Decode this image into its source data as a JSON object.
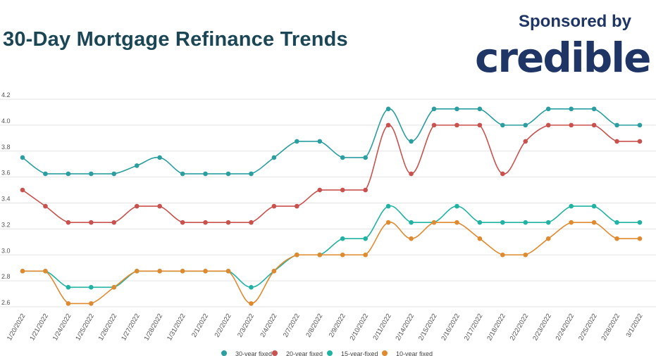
{
  "header": {
    "title": "30-Day Mortgage Refinance Trends",
    "sponsor_text": "Sponsored by",
    "brand": "credible"
  },
  "colors": {
    "title": "#1b4656",
    "brand": "#1f3566",
    "grid": "#e3e3e3"
  },
  "chart_data": {
    "type": "line",
    "categories": [
      "1/20/2022",
      "1/21/2022",
      "1/24/2022",
      "1/25/2022",
      "1/26/2022",
      "1/27/2022",
      "1/28/2022",
      "1/31/2022",
      "2/1/2022",
      "2/2/2022",
      "2/3/2022",
      "2/4/2022",
      "2/7/2022",
      "2/8/2022",
      "2/9/2022",
      "2/10/2022",
      "2/11/2022",
      "2/14/2022",
      "2/15/2022",
      "2/16/2022",
      "2/17/2022",
      "2/18/2022",
      "2/22/2022",
      "2/23/2022",
      "2/24/2022",
      "2/25/2022",
      "2/28/2022",
      "3/1/2022"
    ],
    "ylim": [
      2.6,
      4.2
    ],
    "yticks": [
      "2.6",
      "2.8",
      "3.0",
      "3.2",
      "3.4",
      "3.6",
      "3.8",
      "4.0",
      "4.2"
    ],
    "grid": true,
    "legend_position": "bottom",
    "series": [
      {
        "name": "30-year fixed",
        "color": "#2a9ea0",
        "values": [
          3.75,
          3.625,
          3.625,
          3.625,
          3.625,
          3.688,
          3.75,
          3.625,
          3.625,
          3.625,
          3.625,
          3.75,
          3.875,
          3.875,
          3.75,
          3.75,
          4.125,
          3.875,
          4.125,
          4.125,
          4.125,
          4.0,
          4.0,
          4.125,
          4.125,
          4.125,
          4.0,
          4.0
        ]
      },
      {
        "name": "20-year fixed",
        "color": "#c9514e",
        "values": [
          3.5,
          3.375,
          3.25,
          3.25,
          3.25,
          3.375,
          3.375,
          3.25,
          3.25,
          3.25,
          3.25,
          3.375,
          3.375,
          3.5,
          3.5,
          3.5,
          4.0,
          3.625,
          4.0,
          4.0,
          4.0,
          3.625,
          3.875,
          4.0,
          4.0,
          4.0,
          3.875,
          3.875
        ]
      },
      {
        "name": "15-year-fixed",
        "color": "#20b3a4",
        "values": [
          2.875,
          2.875,
          2.75,
          2.75,
          2.75,
          2.875,
          2.875,
          2.875,
          2.875,
          2.875,
          2.75,
          2.875,
          3.0,
          3.0,
          3.125,
          3.125,
          3.375,
          3.25,
          3.25,
          3.375,
          3.25,
          3.25,
          3.25,
          3.25,
          3.375,
          3.375,
          3.25,
          3.25
        ]
      },
      {
        "name": "10-year fixed",
        "color": "#e08a2f",
        "values": [
          2.875,
          2.875,
          2.625,
          2.625,
          2.75,
          2.875,
          2.875,
          2.875,
          2.875,
          2.875,
          2.625,
          2.875,
          3.0,
          3.0,
          3.0,
          3.0,
          3.25,
          3.125,
          3.25,
          3.25,
          3.125,
          3.0,
          3.0,
          3.125,
          3.25,
          3.25,
          3.125,
          3.125
        ]
      }
    ]
  }
}
